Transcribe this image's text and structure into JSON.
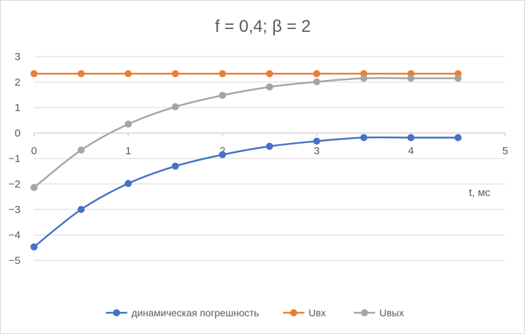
{
  "chart_data": {
    "type": "line",
    "title": "f = 0,4; β = 2",
    "xlabel": "t, мс",
    "ylabel": "",
    "xlim": [
      0,
      5
    ],
    "ylim": [
      -5,
      3
    ],
    "x_ticks": [
      "0",
      "1",
      "2",
      "3",
      "4",
      "5"
    ],
    "y_ticks": [
      "3",
      "2",
      "1",
      "0",
      "-1",
      "-2",
      "-3",
      "-4",
      "-5"
    ],
    "grid": "horizontal",
    "legend": "bottom",
    "x": [
      0,
      0.5,
      1,
      1.5,
      2,
      2.5,
      3,
      3.5,
      4,
      4.5
    ],
    "series": [
      {
        "name": "динамическая погрешность",
        "color": "#4472c4",
        "values": [
          -4.47,
          -3.0,
          -1.98,
          -1.3,
          -0.85,
          -0.52,
          -0.32,
          -0.18,
          -0.18,
          -0.18
        ]
      },
      {
        "name": "Uвх",
        "color": "#ed7d31",
        "values": [
          2.33,
          2.33,
          2.33,
          2.33,
          2.33,
          2.33,
          2.33,
          2.33,
          2.33,
          2.33
        ]
      },
      {
        "name": "Uвых",
        "color": "#a5a5a5",
        "values": [
          -2.14,
          -0.67,
          0.35,
          1.03,
          1.48,
          1.81,
          2.01,
          2.15,
          2.15,
          2.15
        ]
      }
    ]
  }
}
